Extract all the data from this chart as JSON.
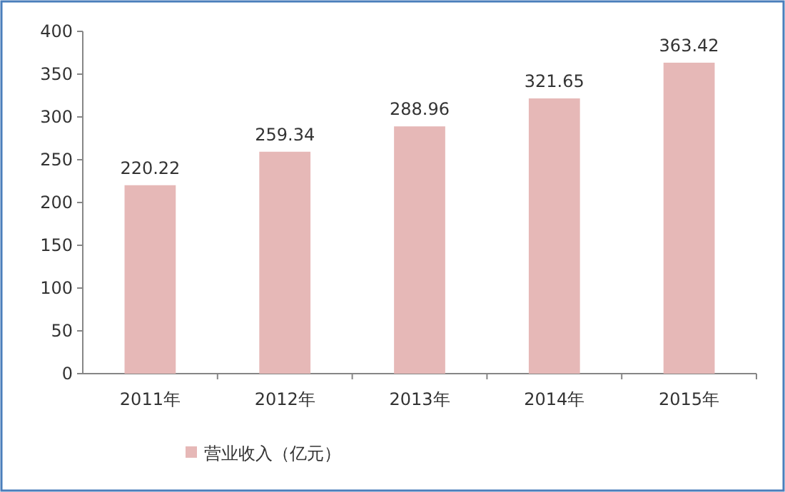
{
  "chart_data": {
    "type": "bar",
    "categories": [
      "2011年",
      "2012年",
      "2013年",
      "2014年",
      "2015年"
    ],
    "series": [
      {
        "name": "营业收入（亿元）",
        "color": "#e6b8b7",
        "values": [
          220.22,
          259.34,
          288.96,
          321.65,
          363.42
        ]
      }
    ],
    "ylim": [
      0,
      400
    ],
    "yticks": [
      0,
      50,
      100,
      150,
      200,
      250,
      300,
      350,
      400
    ],
    "data_labels": true,
    "legend": "bottom left",
    "grid": false
  }
}
